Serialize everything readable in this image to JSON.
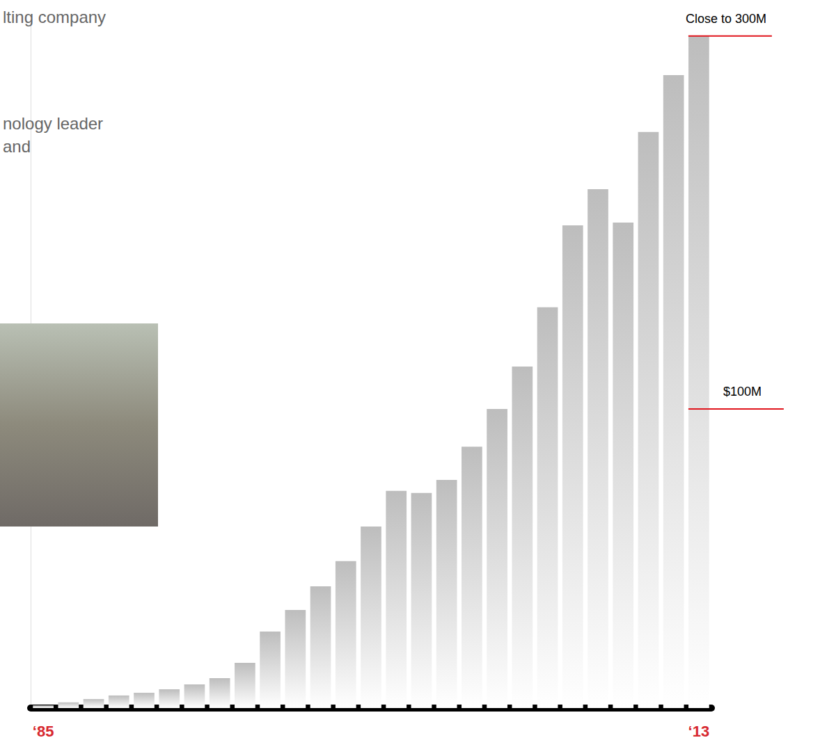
{
  "chart_data": {
    "type": "bar",
    "categories": [
      "‘85",
      null,
      null,
      null,
      null,
      null,
      null,
      null,
      null,
      null,
      null,
      null,
      null,
      null,
      null,
      null,
      null,
      null,
      null,
      null,
      null,
      null,
      null,
      null,
      null,
      null,
      "‘13"
    ],
    "values": [
      0.9,
      1.9,
      3.0,
      4.2,
      5.1,
      6.3,
      7.9,
      10.0,
      15.1,
      25.6,
      32.8,
      40.7,
      49.1,
      60.7,
      72.6,
      71.9,
      76.3,
      87.4,
      100.0,
      114.2,
      134.0,
      161.4,
      173.5,
      162.3,
      192.6,
      211.6,
      224.7
    ],
    "color": "#bdbdbd",
    "ylim": [
      0,
      230
    ],
    "yticks": [],
    "tick_labels": "x",
    "grid": false,
    "annotations": [
      {
        "text": "Close to 300M",
        "value": 224.7
      },
      {
        "text": "$100M",
        "value": 100
      }
    ],
    "text_fragments": [
      "lting company",
      "nology leader",
      "and"
    ]
  }
}
